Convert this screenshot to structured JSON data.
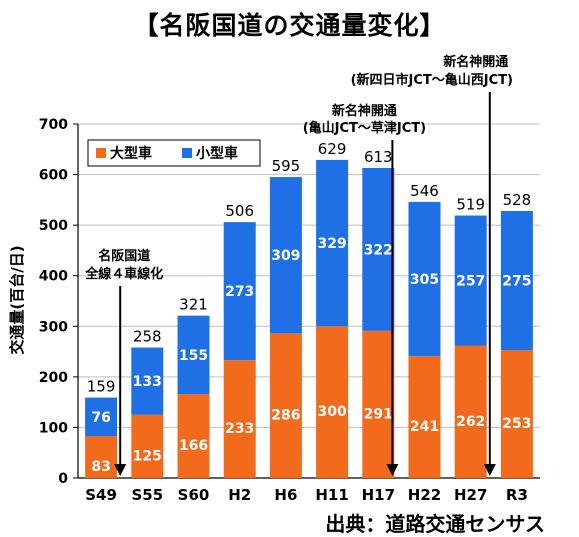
{
  "page": {
    "title": "【名阪国道の交通量変化】",
    "source": "出典：道路交通センサス"
  },
  "chart_data": {
    "type": "bar",
    "stacked": true,
    "title": "【名阪国道の交通量変化】",
    "xlabel": "",
    "ylabel": "交通量(百台/日)",
    "ylim": [
      0,
      700
    ],
    "yticks": [
      0,
      100,
      200,
      300,
      400,
      500,
      600,
      700
    ],
    "categories": [
      "S49",
      "S55",
      "S60",
      "H2",
      "H6",
      "H11",
      "H17",
      "H22",
      "H27",
      "R3"
    ],
    "series": [
      {
        "name": "大型車",
        "color": "#f26b1d",
        "values": [
          83,
          125,
          166,
          233,
          286,
          300,
          291,
          241,
          262,
          253
        ]
      },
      {
        "name": "小型車",
        "color": "#1f6fe5",
        "values": [
          76,
          133,
          155,
          273,
          309,
          329,
          322,
          305,
          257,
          275
        ]
      }
    ],
    "totals": [
      159,
      258,
      321,
      506,
      595,
      629,
      613,
      546,
      519,
      528
    ],
    "grid": true,
    "legend_position": "top-left",
    "annotations": [
      {
        "lines": [
          "名阪国道",
          "全線４車線化"
        ],
        "between": [
          "S49",
          "S55"
        ]
      },
      {
        "lines": [
          "新名神開通",
          "(亀山JCT～草津JCT)"
        ],
        "between": [
          "H17",
          "H22"
        ]
      },
      {
        "lines": [
          "新名神開通",
          "(新四日市JCT～亀山西JCT)"
        ],
        "between": [
          "H27",
          "R3"
        ]
      }
    ]
  }
}
